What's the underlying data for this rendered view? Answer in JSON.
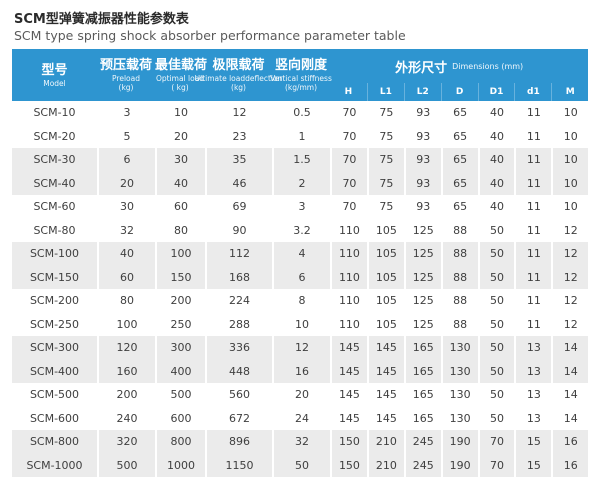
{
  "page": {
    "title_zh": "SCM型弹簧减振器性能参数表",
    "title_en": "SCM type spring shock absorber performance parameter table"
  },
  "colors": {
    "header_bg": "#2e95d0",
    "stripe_bg": "#ebebeb",
    "header_text": "#ffffff",
    "body_text": "#3f3f3f",
    "title_text": "#2b2b2b",
    "subtitle_text": "#5a5a5a"
  },
  "table": {
    "header": {
      "model": {
        "zh": "型号",
        "en": "Model"
      },
      "preload": {
        "zh": "预压载荷",
        "en": "Preload",
        "unit": "(kg)"
      },
      "optimal": {
        "zh": "最佳载荷",
        "en": "Optimal load",
        "unit": "( kg)"
      },
      "ultimate": {
        "zh": "极限载荷",
        "en": "Ultimate loaddeflection",
        "unit": "(kg)"
      },
      "stiffness": {
        "zh": "竖向刚度",
        "en": "Vertical stiffness",
        "unit": "(kg/mm)"
      },
      "dims": {
        "zh": "外形尺寸",
        "en": "Dimensions (mm)"
      }
    },
    "dim_columns": [
      "H",
      "L1",
      "L2",
      "D",
      "D1",
      "d1",
      "M"
    ],
    "rows": [
      {
        "model": "SCM-10",
        "values": [
          "3",
          "10",
          "12",
          "0.5",
          "70",
          "75",
          "93",
          "65",
          "40",
          "11",
          "10"
        ]
      },
      {
        "model": "SCM-20",
        "values": [
          "5",
          "20",
          "23",
          "1",
          "70",
          "75",
          "93",
          "65",
          "40",
          "11",
          "10"
        ]
      },
      {
        "model": "SCM-30",
        "values": [
          "6",
          "30",
          "35",
          "1.5",
          "70",
          "75",
          "93",
          "65",
          "40",
          "11",
          "10"
        ]
      },
      {
        "model": "SCM-40",
        "values": [
          "20",
          "40",
          "46",
          "2",
          "70",
          "75",
          "93",
          "65",
          "40",
          "11",
          "10"
        ]
      },
      {
        "model": "SCM-60",
        "values": [
          "30",
          "60",
          "69",
          "3",
          "70",
          "75",
          "93",
          "65",
          "40",
          "11",
          "10"
        ]
      },
      {
        "model": "SCM-80",
        "values": [
          "32",
          "80",
          "90",
          "3.2",
          "110",
          "105",
          "125",
          "88",
          "50",
          "11",
          "12"
        ]
      },
      {
        "model": "SCM-100",
        "values": [
          "40",
          "100",
          "112",
          "4",
          "110",
          "105",
          "125",
          "88",
          "50",
          "11",
          "12"
        ]
      },
      {
        "model": "SCM-150",
        "values": [
          "60",
          "150",
          "168",
          "6",
          "110",
          "105",
          "125",
          "88",
          "50",
          "11",
          "12"
        ]
      },
      {
        "model": "SCM-200",
        "values": [
          "80",
          "200",
          "224",
          "8",
          "110",
          "105",
          "125",
          "88",
          "50",
          "11",
          "12"
        ]
      },
      {
        "model": "SCM-250",
        "values": [
          "100",
          "250",
          "288",
          "10",
          "110",
          "105",
          "125",
          "88",
          "50",
          "11",
          "12"
        ]
      },
      {
        "model": "SCM-300",
        "values": [
          "120",
          "300",
          "336",
          "12",
          "145",
          "145",
          "165",
          "130",
          "50",
          "13",
          "14"
        ]
      },
      {
        "model": "SCM-400",
        "values": [
          "160",
          "400",
          "448",
          "16",
          "145",
          "145",
          "165",
          "130",
          "50",
          "13",
          "14"
        ]
      },
      {
        "model": "SCM-500",
        "values": [
          "200",
          "500",
          "560",
          "20",
          "145",
          "145",
          "165",
          "130",
          "50",
          "13",
          "14"
        ]
      },
      {
        "model": "SCM-600",
        "values": [
          "240",
          "600",
          "672",
          "24",
          "145",
          "145",
          "165",
          "130",
          "50",
          "13",
          "14"
        ]
      },
      {
        "model": "SCM-800",
        "values": [
          "320",
          "800",
          "896",
          "32",
          "150",
          "210",
          "245",
          "190",
          "70",
          "15",
          "16"
        ]
      },
      {
        "model": "SCM-1000",
        "values": [
          "500",
          "1000",
          "1150",
          "50",
          "150",
          "210",
          "245",
          "190",
          "70",
          "15",
          "16"
        ]
      }
    ]
  }
}
